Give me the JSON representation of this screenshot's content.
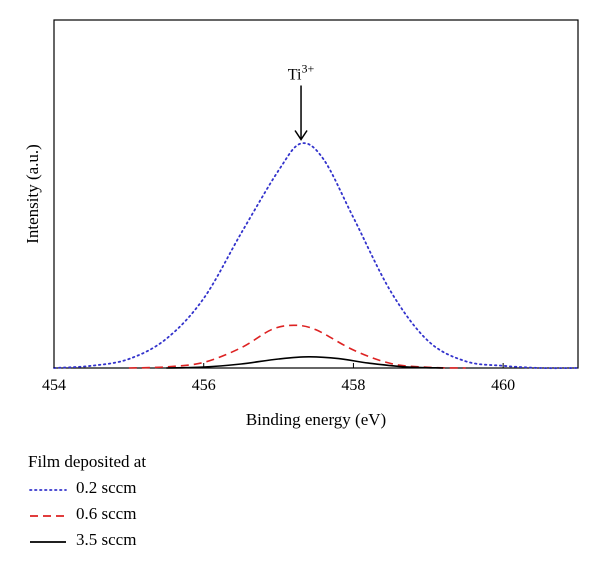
{
  "chart_data": {
    "type": "line",
    "title": "",
    "xlabel": "Binding energy (eV)",
    "ylabel": "Intensity (a.u.)",
    "xlim": [
      454,
      461
    ],
    "ylim": [
      0,
      1.55
    ],
    "xticks": [
      454,
      456,
      458,
      460
    ],
    "grid": false,
    "legend_position": "below",
    "legend_title": "Film deposited at",
    "annotation": {
      "base": "Ti",
      "sup": "3+",
      "x": 457.3,
      "y": 1.0
    },
    "series": [
      {
        "name": "0.2 sccm",
        "color": "#3333cc",
        "line_style": "dotted",
        "x": [
          454.0,
          454.5,
          455.0,
          455.5,
          456.0,
          456.5,
          457.0,
          457.3,
          457.6,
          458.0,
          458.5,
          459.0,
          459.5,
          460.0,
          460.5,
          461.0
        ],
        "y": [
          0.0,
          0.01,
          0.04,
          0.13,
          0.31,
          0.6,
          0.88,
          1.0,
          0.93,
          0.67,
          0.34,
          0.12,
          0.03,
          0.01,
          0.0,
          0.0
        ]
      },
      {
        "name": "0.6 sccm",
        "color": "#dd2222",
        "line_style": "dashed",
        "x": [
          455.0,
          455.5,
          456.0,
          456.5,
          456.9,
          457.2,
          457.5,
          458.0,
          458.5,
          459.0,
          459.5
        ],
        "y": [
          0.0,
          0.005,
          0.025,
          0.09,
          0.17,
          0.19,
          0.17,
          0.08,
          0.02,
          0.003,
          0.0
        ]
      },
      {
        "name": "3.5 sccm",
        "color": "#000000",
        "line_style": "solid",
        "x": [
          455.5,
          456.0,
          456.5,
          457.0,
          457.4,
          457.8,
          458.2,
          458.7,
          459.2
        ],
        "y": [
          0.0,
          0.004,
          0.018,
          0.04,
          0.05,
          0.042,
          0.022,
          0.005,
          0.0
        ]
      }
    ]
  }
}
